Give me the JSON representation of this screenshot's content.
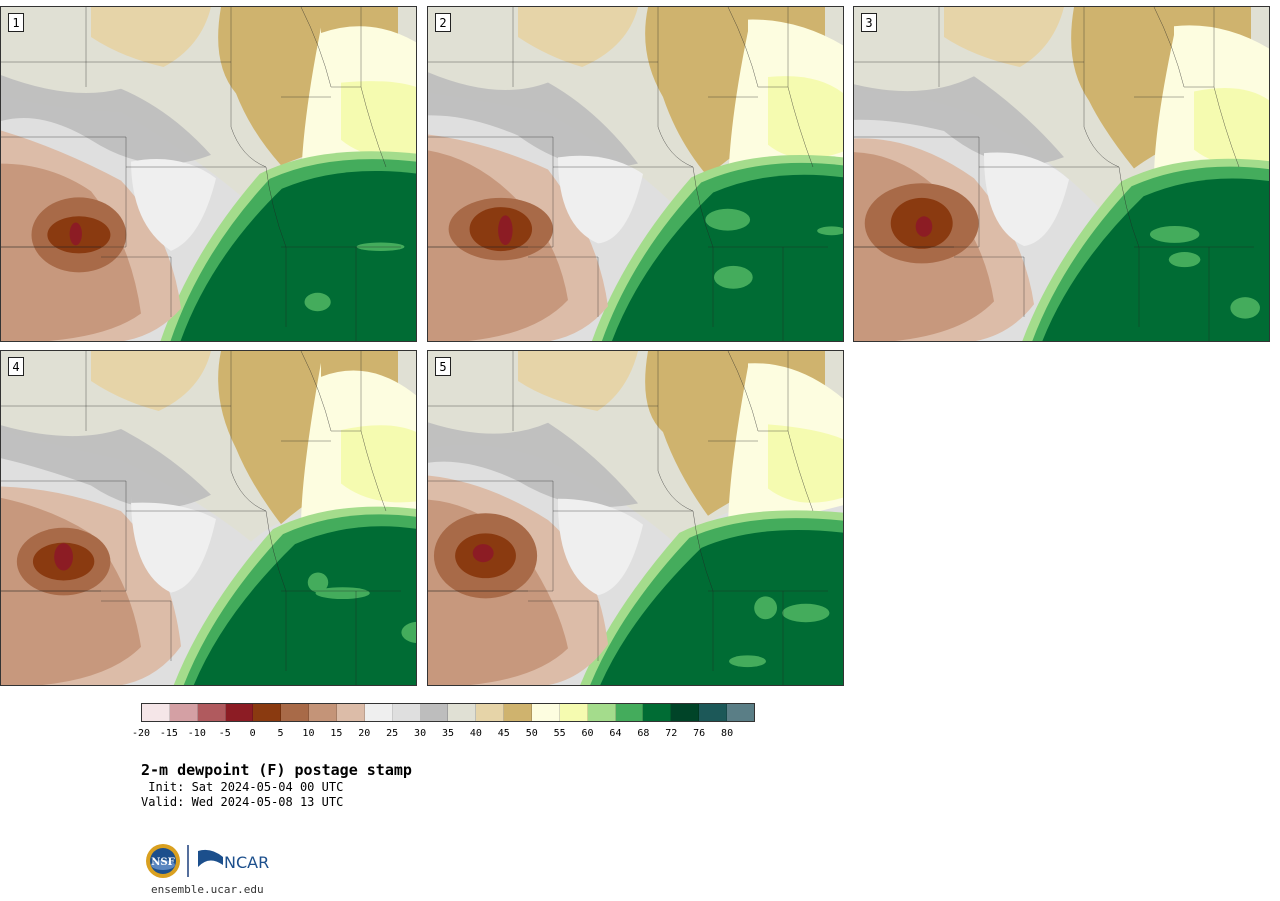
{
  "panels": [
    {
      "label": "1",
      "variant": 0
    },
    {
      "label": "2",
      "variant": 1
    },
    {
      "label": "3",
      "variant": 2
    },
    {
      "label": "4",
      "variant": 3
    },
    {
      "label": "5",
      "variant": 4
    }
  ],
  "colorbar": {
    "colors": [
      "#f5e6e8",
      "#d4a0a4",
      "#b05a5e",
      "#8c1c24",
      "#8a3a10",
      "#a86a48",
      "#c49478",
      "#dcbca8",
      "#efefef",
      "#dfdfdf",
      "#bdbdbd",
      "#e0e0d4",
      "#e6d4a8",
      "#cfb36e",
      "#fdfde0",
      "#f5fbb0",
      "#a4dc8c",
      "#44ac5c",
      "#006c34",
      "#004428",
      "#1c5858",
      "#5a7e86"
    ],
    "tick_labels": [
      "-20",
      "-15",
      "-10",
      "-5",
      "0",
      "5",
      "10",
      "15",
      "20",
      "25",
      "30",
      "35",
      "40",
      "45",
      "50",
      "55",
      "60",
      "64",
      "68",
      "72",
      "76",
      "80"
    ]
  },
  "title": "2-m dewpoint (F) postage stamp",
  "init_label": " Init: Sat 2024-05-04 00 UTC",
  "valid_label": "Valid: Wed 2024-05-08 13 UTC",
  "logos": {
    "nsf": "NSF",
    "ncar": "NCAR"
  },
  "website": "ensemble.ucar.edu"
}
